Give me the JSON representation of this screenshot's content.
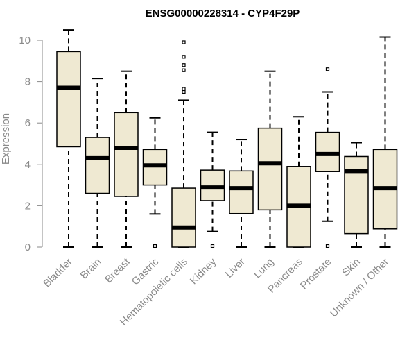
{
  "chart_data": {
    "type": "boxplot",
    "title": "ENSG00000228314 - CYP4F29P",
    "xlabel": "",
    "ylabel": "Expression",
    "ylim": [
      0,
      10.5
    ],
    "yticks": [
      0,
      2,
      4,
      6,
      8,
      10
    ],
    "grid": false,
    "colors": {
      "box_fill": "#efe9d2",
      "stroke": "#000000",
      "axis_text": "#8a8a8a"
    },
    "categories": [
      "Bladder",
      "Brain",
      "Breast",
      "Gastric",
      "Hematopoietic cells",
      "Kidney",
      "Liver",
      "Lung",
      "Pancreas",
      "Prostate",
      "Skin",
      "Unknown / Other"
    ],
    "boxes": [
      {
        "min": 0,
        "q1": 4.85,
        "median": 7.7,
        "q3": 9.45,
        "max": 10.5,
        "outliers": []
      },
      {
        "min": 0,
        "q1": 2.6,
        "median": 4.3,
        "q3": 5.3,
        "max": 8.15,
        "outliers": []
      },
      {
        "min": 0,
        "q1": 2.45,
        "median": 4.8,
        "q3": 6.5,
        "max": 8.5,
        "outliers": []
      },
      {
        "min": 1.6,
        "q1": 3.0,
        "median": 3.95,
        "q3": 4.72,
        "max": 6.25,
        "outliers": [
          0.05
        ]
      },
      {
        "min": 0,
        "q1": 0,
        "median": 0.95,
        "q3": 2.85,
        "max": 7.1,
        "outliers": [
          7.5,
          7.65,
          8.55,
          8.8,
          9.2,
          9.9
        ]
      },
      {
        "min": 0.75,
        "q1": 2.25,
        "median": 2.88,
        "q3": 3.72,
        "max": 5.55,
        "outliers": [
          0.05
        ]
      },
      {
        "min": 0,
        "q1": 1.62,
        "median": 2.85,
        "q3": 3.68,
        "max": 5.2,
        "outliers": []
      },
      {
        "min": 0,
        "q1": 1.8,
        "median": 4.05,
        "q3": 5.75,
        "max": 8.5,
        "outliers": []
      },
      {
        "min": 0,
        "q1": 0,
        "median": 2.0,
        "q3": 3.9,
        "max": 6.3,
        "outliers": []
      },
      {
        "min": 1.25,
        "q1": 3.65,
        "median": 4.5,
        "q3": 5.55,
        "max": 7.5,
        "outliers": [
          8.6,
          0.05
        ]
      },
      {
        "min": 0,
        "q1": 0.65,
        "median": 3.68,
        "q3": 4.38,
        "max": 5.05,
        "outliers": []
      },
      {
        "min": 0,
        "q1": 0.88,
        "median": 2.85,
        "q3": 4.72,
        "max": 10.15,
        "outliers": []
      }
    ]
  }
}
